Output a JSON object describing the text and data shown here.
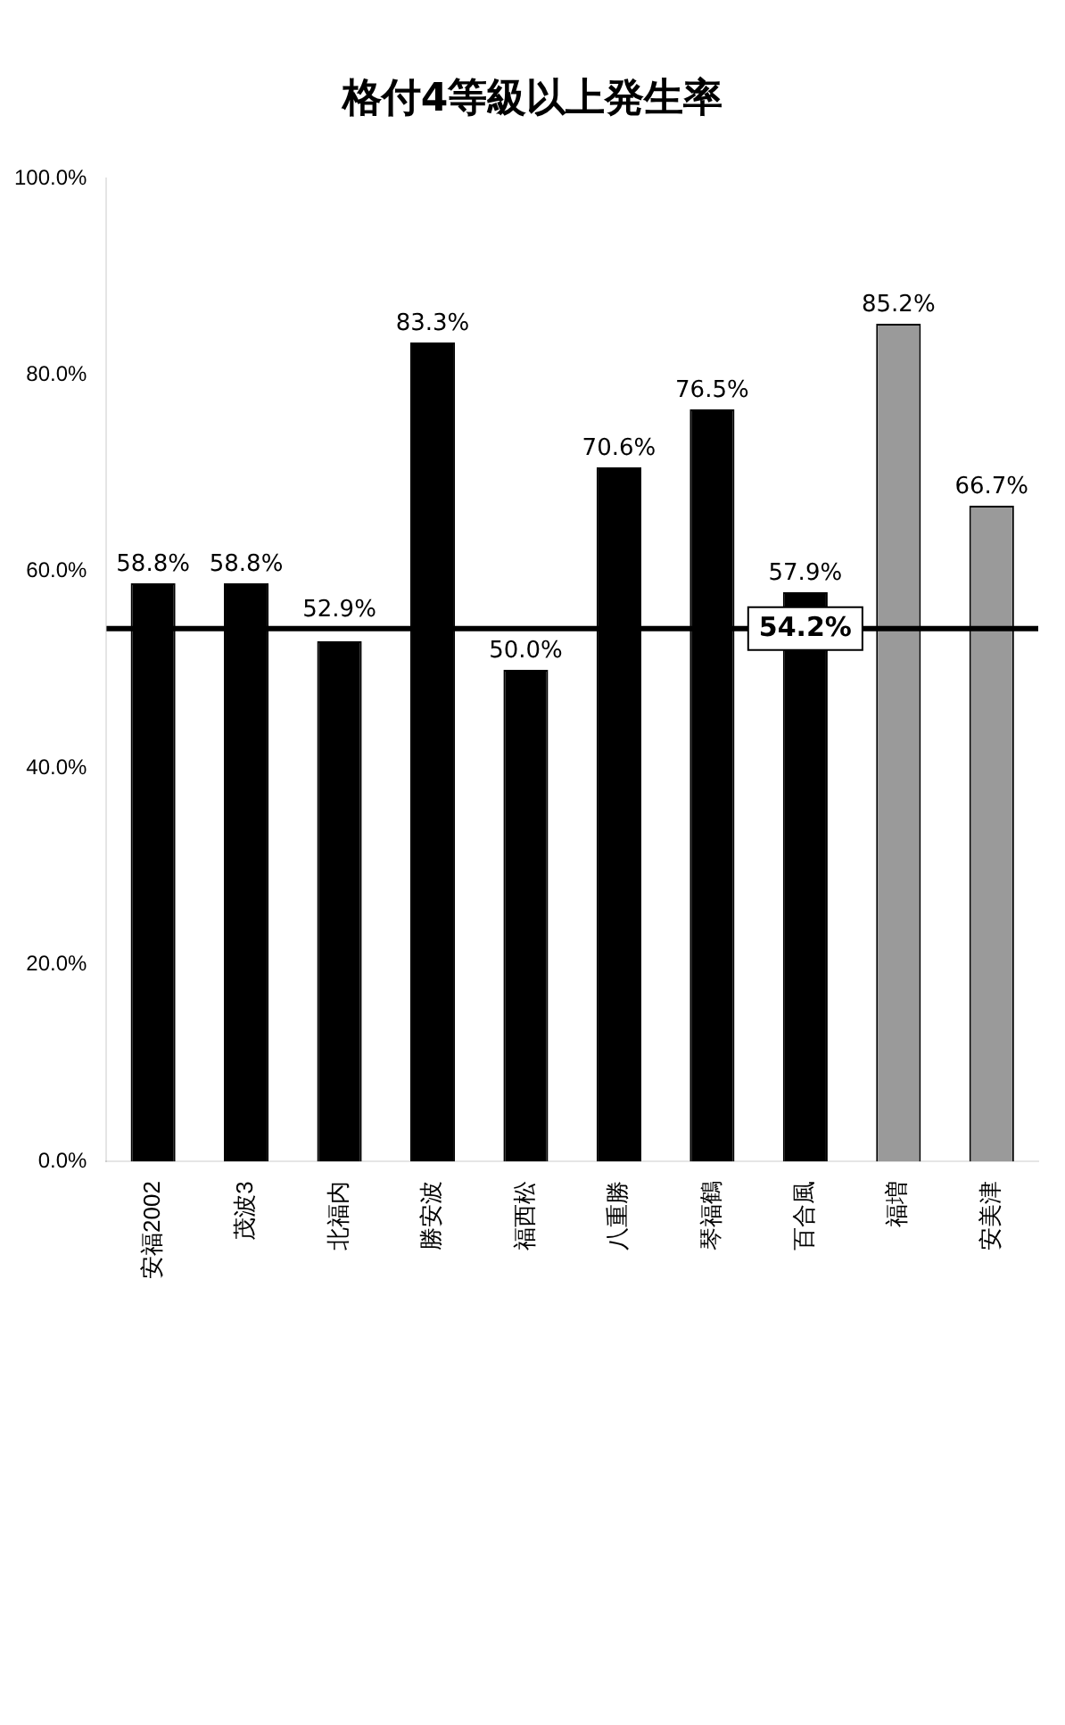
{
  "chart_data": {
    "type": "bar",
    "title": "格付4等級以上発生率",
    "categories": [
      "安福2002",
      "茂波3",
      "北福内",
      "勝安波",
      "福西松",
      "八重勝",
      "琴福鶴",
      "百合風",
      "福増",
      "安美津"
    ],
    "values": [
      58.8,
      58.8,
      52.9,
      83.3,
      50.0,
      70.6,
      76.5,
      57.9,
      85.2,
      66.7
    ],
    "colors": [
      "#000000",
      "#000000",
      "#000000",
      "#000000",
      "#000000",
      "#000000",
      "#000000",
      "#000000",
      "#9a9a9a",
      "#9a9a9a"
    ],
    "value_labels": [
      "58.8%",
      "58.8%",
      "52.9%",
      "83.3%",
      "50.0%",
      "70.6%",
      "76.5%",
      "57.9%",
      "85.2%",
      "66.7%"
    ],
    "ylim": [
      0,
      100
    ],
    "yticks": [
      {
        "value": 0,
        "label": "0.0%"
      },
      {
        "value": 20,
        "label": "20.0%"
      },
      {
        "value": 40,
        "label": "40.0%"
      },
      {
        "value": 60,
        "label": "60.0%"
      },
      {
        "value": 80,
        "label": "80.0%"
      },
      {
        "value": 100,
        "label": "100.0%"
      }
    ],
    "ref_lines": [
      {
        "axis": "y",
        "value": 54.2,
        "label": "54.2%",
        "color": "#000000"
      }
    ],
    "grid": false,
    "legend": false
  }
}
